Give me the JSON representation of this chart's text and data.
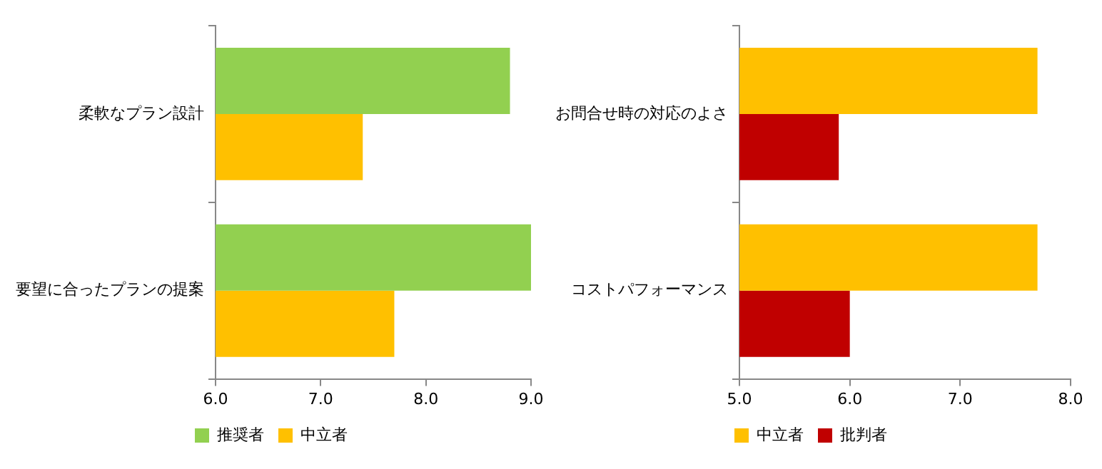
{
  "chart_data": [
    {
      "type": "bar",
      "orientation": "horizontal",
      "categories": [
        "柔軟なプラン設計",
        "要望に合ったプランの提案"
      ],
      "series": [
        {
          "name": "推奨者",
          "color": "#92d050",
          "values": [
            8.8,
            9.0
          ]
        },
        {
          "name": "中立者",
          "color": "#ffc000",
          "values": [
            7.4,
            7.7
          ]
        }
      ],
      "xlim": [
        6,
        9
      ],
      "xticks": [
        {
          "value": 6,
          "label": "6.0"
        },
        {
          "value": 7,
          "label": "7.0"
        },
        {
          "value": 8,
          "label": "8.0"
        },
        {
          "value": 9,
          "label": "9.0"
        }
      ],
      "grid": false,
      "legend": "bottom"
    },
    {
      "type": "bar",
      "orientation": "horizontal",
      "categories": [
        "お問合せ時の対応のよさ",
        "コストパフォーマンス"
      ],
      "series": [
        {
          "name": "中立者",
          "color": "#ffc000",
          "values": [
            7.7,
            7.7
          ]
        },
        {
          "name": "批判者",
          "color": "#c00000",
          "values": [
            5.9,
            6.0
          ]
        }
      ],
      "xlim": [
        5,
        8
      ],
      "xticks": [
        {
          "value": 5,
          "label": "5.0"
        },
        {
          "value": 6,
          "label": "6.0"
        },
        {
          "value": 7,
          "label": "7.0"
        },
        {
          "value": 8,
          "label": "8.0"
        }
      ],
      "grid": false,
      "legend": "bottom"
    }
  ]
}
